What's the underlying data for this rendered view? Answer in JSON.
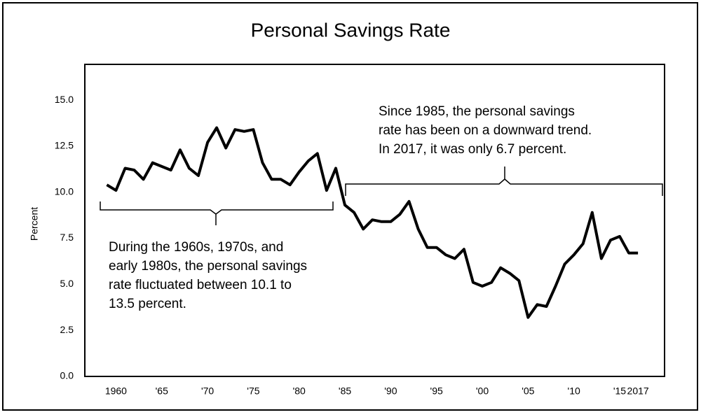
{
  "chart_data": {
    "type": "line",
    "title": "Personal Savings Rate",
    "y_label": "Percent",
    "x": [
      1959,
      1960,
      1961,
      1962,
      1963,
      1964,
      1965,
      1966,
      1967,
      1968,
      1969,
      1970,
      1971,
      1972,
      1973,
      1974,
      1975,
      1976,
      1977,
      1978,
      1979,
      1980,
      1981,
      1982,
      1983,
      1984,
      1985,
      1986,
      1987,
      1988,
      1989,
      1990,
      1991,
      1992,
      1993,
      1994,
      1995,
      1996,
      1997,
      1998,
      1999,
      2000,
      2001,
      2002,
      2003,
      2004,
      2005,
      2006,
      2007,
      2008,
      2009,
      2010,
      2011,
      2012,
      2013,
      2014,
      2015,
      2016,
      2017
    ],
    "series": [
      {
        "color": "#000000",
        "values": [
          10.4,
          10.1,
          11.3,
          11.2,
          10.7,
          11.6,
          11.4,
          11.2,
          12.3,
          11.3,
          10.9,
          12.7,
          13.5,
          12.4,
          13.4,
          13.3,
          13.4,
          11.6,
          10.7,
          10.7,
          10.4,
          11.1,
          11.7,
          12.1,
          10.1,
          11.3,
          9.3,
          8.9,
          8.0,
          8.5,
          8.4,
          8.4,
          8.8,
          9.5,
          8.0,
          7.0,
          7.0,
          6.6,
          6.4,
          6.9,
          5.1,
          4.9,
          5.1,
          5.9,
          5.6,
          5.2,
          3.2,
          3.9,
          3.8,
          4.9,
          6.1,
          6.6,
          7.2,
          8.9,
          6.4,
          7.4,
          7.6,
          6.7,
          6.7
        ]
      }
    ],
    "xlim": [
      1956.6,
      2019.9
    ],
    "xticks": [
      1960,
      {
        "value": 1965,
        "label": "'65"
      },
      {
        "value": 1970,
        "label": "'70"
      },
      {
        "value": 1975,
        "label": "'75"
      },
      {
        "value": 1980,
        "label": "'80"
      },
      {
        "value": 1985,
        "label": "'85"
      },
      {
        "value": 1990,
        "label": "'90"
      },
      {
        "value": 1995,
        "label": "'95"
      },
      {
        "value": 2000,
        "label": "'00"
      },
      {
        "value": 2005,
        "label": "'05"
      },
      {
        "value": 2010,
        "label": "'10"
      },
      {
        "value": 2015,
        "label": "'15"
      },
      2017
    ],
    "ylim": [
      0,
      16.94
    ],
    "yticks": [
      {
        "value": 0,
        "label": "0.0"
      },
      2.5,
      {
        "value": 5,
        "label": "5.0"
      },
      7.5,
      {
        "value": 10,
        "label": "10.0"
      },
      12.5,
      {
        "value": 15,
        "label": "15.0"
      }
    ],
    "grid": false,
    "annotations": [
      [
        "During the 1960s, 1970s, and",
        "early 1980s, the personal savings",
        "rate fluctuated between 10.1 to",
        "13.5 percent."
      ],
      [
        "Since 1985, the personal savings",
        "rate has been on a downward trend.",
        "In 2017, it was only 6.7 percent."
      ]
    ]
  }
}
